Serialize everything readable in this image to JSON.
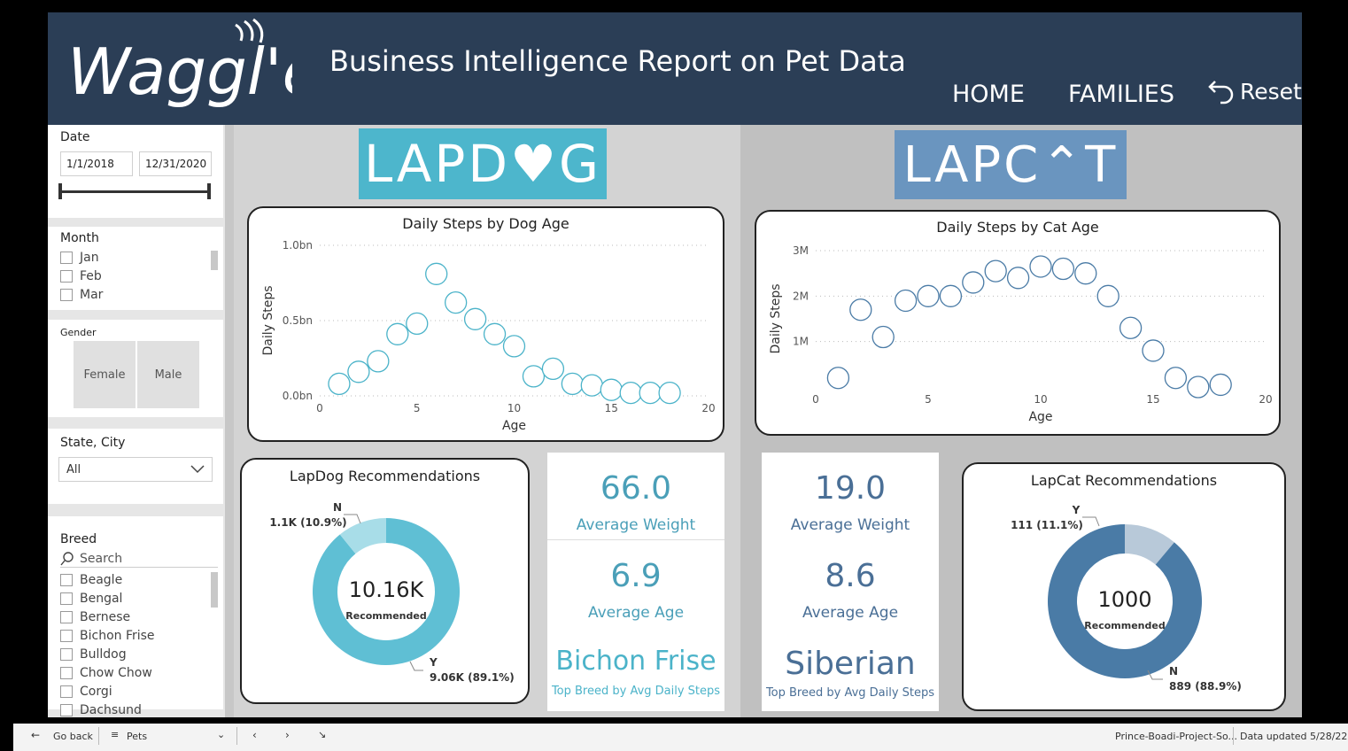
{
  "header": {
    "logo_text": "Waggl'e",
    "title": "Business Intelligence Report on Pet Data",
    "nav": {
      "home": "HOME",
      "families": "FAMILIES",
      "reset": "Reset"
    }
  },
  "filters": {
    "date": {
      "title": "Date",
      "start": "1/1/2018",
      "end": "12/31/2020"
    },
    "month": {
      "title": "Month",
      "items": [
        "Jan",
        "Feb",
        "Mar"
      ]
    },
    "gender": {
      "title": "Gender",
      "options": [
        "Female",
        "Male"
      ]
    },
    "state_city": {
      "title": "State, City",
      "value": "All"
    },
    "breed": {
      "title": "Breed",
      "search_placeholder": "Search",
      "items": [
        "Beagle",
        "Bengal",
        "Bernese",
        "Bichon Frise",
        "Bulldog",
        "Chow Chow",
        "Corgi",
        "Dachsund"
      ]
    }
  },
  "dog": {
    "banner": "LAPD♥G",
    "chart": {
      "title": "Daily Steps by Dog Age",
      "xlabel": "Age",
      "ylabel": "Daily Steps",
      "xticks": [
        "0",
        "5",
        "10",
        "15",
        "20"
      ],
      "yticks": [
        "0.0bn",
        "0.5bn",
        "1.0bn"
      ]
    },
    "recommend": {
      "title": "LapDog Recommendations",
      "center_value": "10.16K",
      "center_label": "Recommended",
      "n_letter": "N",
      "n_label": "1.1K (10.9%)",
      "y_letter": "Y",
      "y_label": "9.06K (89.1%)"
    },
    "kpi": {
      "weight_value": "66.0",
      "weight_label": "Average Weight",
      "age_value": "6.9",
      "age_label": "Average Age",
      "breed_value": "Bichon Frise",
      "breed_label": "Top Breed by Avg Daily Steps"
    }
  },
  "cat": {
    "banner": "LAPC⌃T",
    "chart": {
      "title": "Daily Steps by Cat Age",
      "xlabel": "Age",
      "ylabel": "Daily Steps",
      "xticks": [
        "0",
        "5",
        "10",
        "15",
        "20"
      ],
      "yticks": [
        "1M",
        "2M",
        "3M"
      ]
    },
    "recommend": {
      "title": "LapCat Recommendations",
      "center_value": "1000",
      "center_label": "Recommended",
      "y_letter": "Y",
      "y_label": "111 (11.1%)",
      "n_letter": "N",
      "n_label": "889 (88.9%)"
    },
    "kpi": {
      "weight_value": "19.0",
      "weight_label": "Average Weight",
      "age_value": "8.6",
      "age_label": "Average Age",
      "breed_value": "Siberian",
      "breed_label": "Top Breed by Avg Daily Steps"
    }
  },
  "chart_data": [
    {
      "type": "scatter",
      "title": "Daily Steps by Dog Age",
      "xlabel": "Age",
      "ylabel": "Daily Steps",
      "xlim": [
        0,
        20
      ],
      "ylim": [
        0,
        1000000000
      ],
      "x": [
        1,
        2,
        3,
        4,
        5,
        6,
        7,
        8,
        9,
        10,
        11,
        12,
        13,
        14,
        15,
        16,
        17,
        18
      ],
      "y": [
        80000000,
        160000000,
        230000000,
        410000000,
        480000000,
        810000000,
        620000000,
        510000000,
        410000000,
        330000000,
        130000000,
        180000000,
        80000000,
        70000000,
        40000000,
        20000000,
        20000000,
        20000000
      ],
      "color": "#4bb3c9"
    },
    {
      "type": "scatter",
      "title": "Daily Steps by Cat Age",
      "xlabel": "Age",
      "ylabel": "Daily Steps",
      "xlim": [
        0,
        20
      ],
      "ylim": [
        0,
        3000000
      ],
      "x": [
        1,
        2,
        3,
        4,
        5,
        6,
        7,
        8,
        9,
        10,
        11,
        12,
        13,
        14,
        15,
        16,
        17,
        18
      ],
      "y": [
        200000,
        1700000,
        1100000,
        1900000,
        2000000,
        2000000,
        2300000,
        2550000,
        2400000,
        2650000,
        2600000,
        2500000,
        2000000,
        1300000,
        800000,
        200000,
        0,
        50000
      ],
      "color": "#4a7ba6"
    },
    {
      "type": "pie",
      "title": "LapDog Recommendations",
      "categories": [
        "Y",
        "N"
      ],
      "values": [
        9060,
        1100
      ],
      "colors": [
        "#5fbfd4",
        "#a8dde8"
      ]
    },
    {
      "type": "pie",
      "title": "LapCat Recommendations",
      "categories": [
        "Y",
        "N"
      ],
      "values": [
        111,
        889
      ],
      "colors": [
        "#b8c9d9",
        "#4a7ba6"
      ]
    }
  ],
  "bottombar": {
    "go_back": "Go back",
    "page": "Pets",
    "file": "Prince-Boadi-Project-So...",
    "updated": "Data updated 5/28/22"
  }
}
